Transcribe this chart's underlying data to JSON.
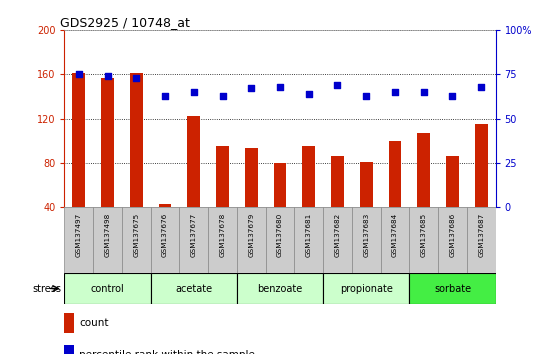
{
  "title": "GDS2925 / 10748_at",
  "samples": [
    "GSM137497",
    "GSM137498",
    "GSM137675",
    "GSM137676",
    "GSM137677",
    "GSM137678",
    "GSM137679",
    "GSM137680",
    "GSM137681",
    "GSM137682",
    "GSM137683",
    "GSM137684",
    "GSM137685",
    "GSM137686",
    "GSM137687"
  ],
  "counts": [
    161,
    157,
    161,
    43,
    122,
    95,
    93,
    80,
    95,
    86,
    81,
    100,
    107,
    86,
    115
  ],
  "percentiles": [
    75,
    74,
    73,
    63,
    65,
    63,
    67,
    68,
    64,
    69,
    63,
    65,
    65,
    63,
    68
  ],
  "groups": [
    {
      "label": "control",
      "start": 0,
      "end": 3,
      "color": "#ccffcc"
    },
    {
      "label": "acetate",
      "start": 3,
      "end": 6,
      "color": "#ccffcc"
    },
    {
      "label": "benzoate",
      "start": 6,
      "end": 9,
      "color": "#ccffcc"
    },
    {
      "label": "propionate",
      "start": 9,
      "end": 12,
      "color": "#ccffcc"
    },
    {
      "label": "sorbate",
      "start": 12,
      "end": 15,
      "color": "#44ee44"
    }
  ],
  "ylim_left": [
    40,
    200
  ],
  "ylim_right": [
    0,
    100
  ],
  "yticks_left": [
    40,
    80,
    120,
    160,
    200
  ],
  "yticks_right": [
    0,
    25,
    50,
    75,
    100
  ],
  "bar_color": "#cc2200",
  "dot_color": "#0000cc",
  "bar_width": 0.45,
  "background_color": "#ffffff",
  "plot_bg_color": "#ffffff",
  "sample_row_color": "#cccccc",
  "left_axis_color": "#cc2200",
  "right_axis_color": "#0000cc"
}
